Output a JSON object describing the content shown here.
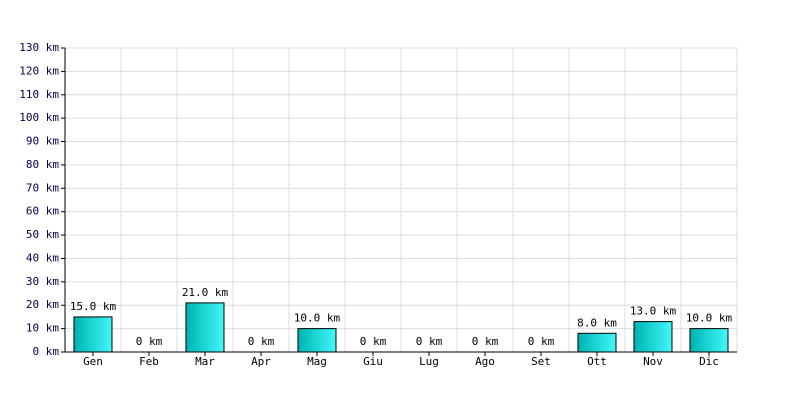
{
  "chart_data": {
    "type": "bar",
    "categories": [
      "Gen",
      "Feb",
      "Mar",
      "Apr",
      "Mag",
      "Giu",
      "Lug",
      "Ago",
      "Set",
      "Ott",
      "Nov",
      "Dic"
    ],
    "values": [
      15,
      0,
      21,
      0,
      10,
      0,
      0,
      0,
      0,
      8,
      13,
      10
    ],
    "value_labels": [
      "15.0 km",
      "0 km",
      "21.0 km",
      "0 km",
      "10.0 km",
      "0 km",
      "0 km",
      "0 km",
      "0 km",
      "8.0 km",
      "13.0 km",
      "10.0 km"
    ],
    "color": "#00b3b3",
    "ylim": [
      0,
      130
    ],
    "yticks": [
      {
        "value": 0,
        "label": "0 km"
      },
      {
        "value": 10,
        "label": "10 km"
      },
      {
        "value": 20,
        "label": "20 km"
      },
      {
        "value": 30,
        "label": "30 km"
      },
      {
        "value": 40,
        "label": "40 km"
      },
      {
        "value": 50,
        "label": "50 km"
      },
      {
        "value": 60,
        "label": "60 km"
      },
      {
        "value": 70,
        "label": "70 km"
      },
      {
        "value": 80,
        "label": "80 km"
      },
      {
        "value": 90,
        "label": "90 km"
      },
      {
        "value": 100,
        "label": "100 km"
      },
      {
        "value": 110,
        "label": "110 km"
      },
      {
        "value": 120,
        "label": "120 km"
      },
      {
        "value": 130,
        "label": "130 km"
      }
    ],
    "grid": true
  }
}
